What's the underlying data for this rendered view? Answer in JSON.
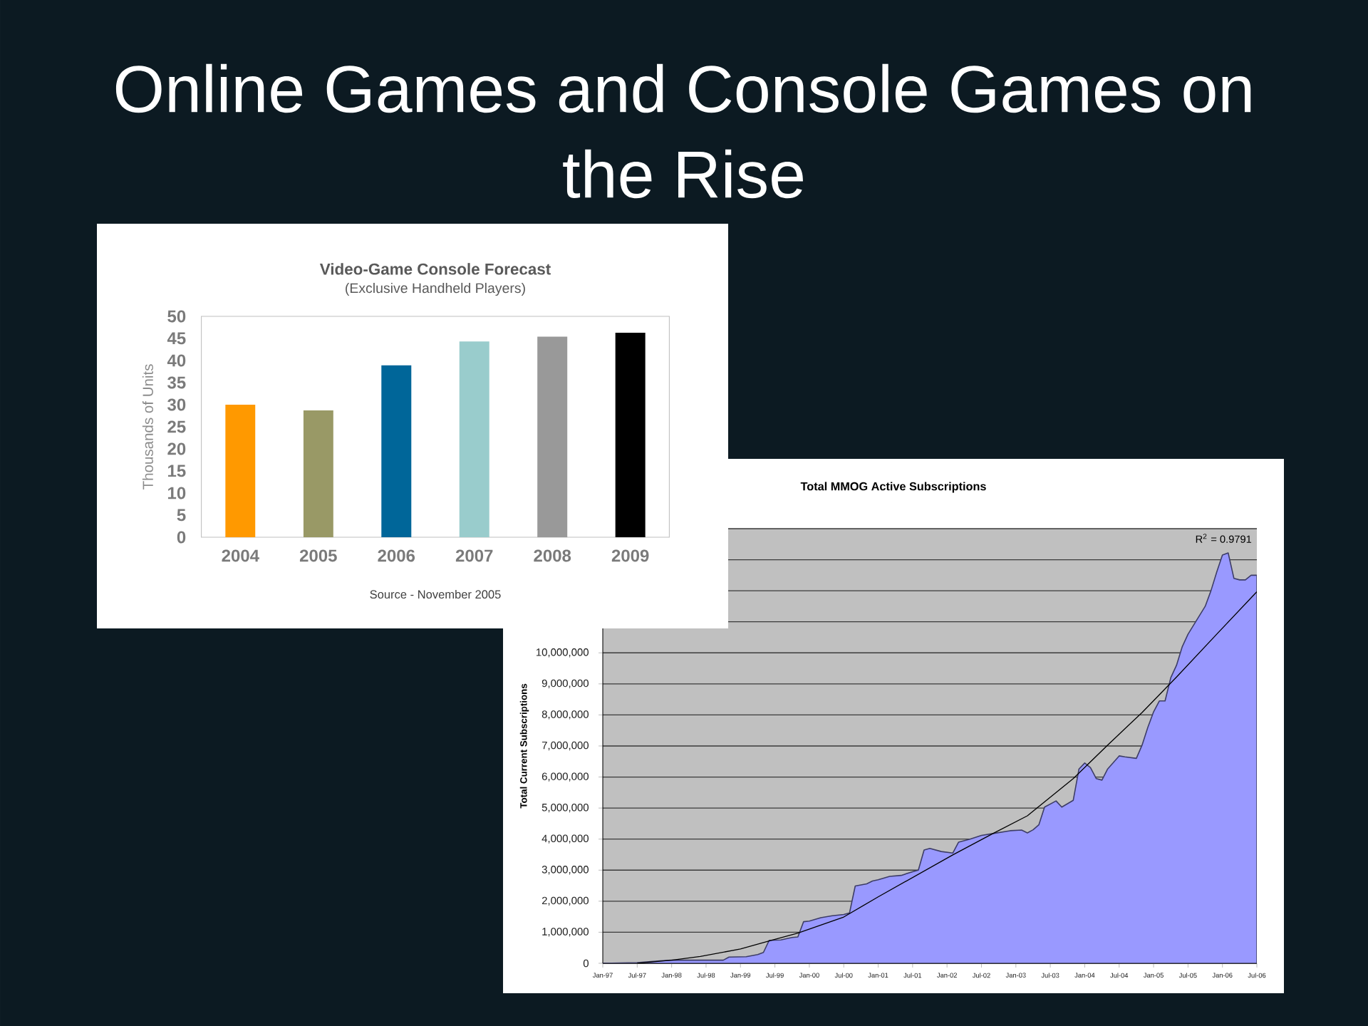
{
  "chart_data": [
    {
      "type": "other",
      "title": "Online Games and Console Games on the Rise"
    },
    {
      "type": "bar",
      "title": "Video-Game Console Forecast",
      "subtitle": "(Exclusive Handheld Players)",
      "ylabel": "Thousands of Units",
      "categories": [
        "2004",
        "2005",
        "2006",
        "2007",
        "2008",
        "2009"
      ],
      "values": [
        30,
        28.7,
        38.9,
        44.3,
        45.4,
        46.3
      ],
      "colors": [
        "#ff9900",
        "#999966",
        "#006699",
        "#99cccc",
        "#999999",
        "#000000"
      ],
      "ylim": [
        0,
        50
      ],
      "yticks": [
        0,
        5,
        10,
        15,
        20,
        25,
        30,
        35,
        40,
        45,
        50
      ],
      "annotations": [
        "Source - November 2005"
      ]
    },
    {
      "type": "area",
      "title": "Total MMOG Active Subscriptions",
      "ylabel": "Total Current Subscriptions",
      "x": [
        "1997-01",
        "1997-07",
        "1997-11",
        "1998-01",
        "1998-10",
        "1998-11",
        "1999-02",
        "1999-04",
        "1999-05",
        "1999-06",
        "1999-08",
        "1999-10",
        "1999-11",
        "1999-12",
        "2000-01",
        "2000-03",
        "2000-05",
        "2000-07",
        "2000-08",
        "2000-09",
        "2000-11",
        "2000-12",
        "2001-01",
        "2001-03",
        "2001-05",
        "2001-07",
        "2001-08",
        "2001-09",
        "2001-10",
        "2001-12",
        "2002-02",
        "2002-03",
        "2002-05",
        "2002-07",
        "2002-09",
        "2002-12",
        "2003-02",
        "2003-03",
        "2003-04",
        "2003-05",
        "2003-06",
        "2003-08",
        "2003-09",
        "2003-11",
        "2003-12",
        "2004-01",
        "2004-02",
        "2004-03",
        "2004-04",
        "2004-05",
        "2004-07",
        "2004-08",
        "2004-10",
        "2004-11",
        "2004-12",
        "2005-01",
        "2005-02",
        "2005-03",
        "2005-04",
        "2005-05",
        "2005-06",
        "2005-07",
        "2005-08",
        "2005-10",
        "2005-11",
        "2005-12",
        "2006-01",
        "2006-02",
        "2006-03",
        "2006-04",
        "2006-05",
        "2006-06",
        "2006-07"
      ],
      "series": [
        {
          "color": "#9999ff",
          "values": [
            0,
            20000,
            80000,
            100000,
            100000,
            200000,
            210000,
            280000,
            350000,
            740000,
            750000,
            830000,
            850000,
            1340000,
            1360000,
            1470000,
            1530000,
            1570000,
            1620000,
            2490000,
            2560000,
            2650000,
            2690000,
            2800000,
            2830000,
            2950000,
            3000000,
            3650000,
            3700000,
            3600000,
            3550000,
            3900000,
            4000000,
            4120000,
            4180000,
            4270000,
            4290000,
            4200000,
            4300000,
            4460000,
            5030000,
            5230000,
            5030000,
            5250000,
            6260000,
            6450000,
            6300000,
            5950000,
            5900000,
            6260000,
            6680000,
            6650000,
            6600000,
            7030000,
            7600000,
            8100000,
            8450000,
            8450000,
            9200000,
            9600000,
            10200000,
            10600000,
            10900000,
            11500000,
            12000000,
            12600000,
            13150000,
            13220000,
            12400000,
            12350000,
            12350000,
            12500000,
            12500000
          ]
        },
        {
          "type": "line",
          "color": "#000000",
          "x": [
            "1997-07",
            "1998-01",
            "1998-06",
            "1999-01",
            "1999-07",
            "1999-11",
            "2000-07",
            "2001-01",
            "2002-02",
            "2002-09",
            "2003-03",
            "2003-11",
            "2004-05",
            "2004-11",
            "2005-05",
            "2005-12",
            "2006-07"
          ],
          "values": [
            0,
            100000,
            220000,
            460000,
            770000,
            970000,
            1490000,
            2140000,
            3490000,
            4180000,
            4750000,
            5950000,
            7030000,
            8080000,
            9220000,
            10600000,
            11970000
          ]
        }
      ],
      "xlim": [
        "1997-01",
        "2006-07"
      ],
      "xticks": [
        {
          "value": "1997-01",
          "label": "Jan-97"
        },
        {
          "value": "1997-07",
          "label": "Jul-97"
        },
        {
          "value": "1998-01",
          "label": "Jan-98"
        },
        {
          "value": "1998-07",
          "label": "Jul-98"
        },
        {
          "value": "1999-01",
          "label": "Jan-99"
        },
        {
          "value": "1999-07",
          "label": "Jul-99"
        },
        {
          "value": "2000-01",
          "label": "Jan-00"
        },
        {
          "value": "2000-07",
          "label": "Jul-00"
        },
        {
          "value": "2001-01",
          "label": "Jan-01"
        },
        {
          "value": "2001-07",
          "label": "Jul-01"
        },
        {
          "value": "2002-01",
          "label": "Jan-02"
        },
        {
          "value": "2002-07",
          "label": "Jul-02"
        },
        {
          "value": "2003-01",
          "label": "Jan-03"
        },
        {
          "value": "2003-07",
          "label": "Jul-03"
        },
        {
          "value": "2004-01",
          "label": "Jan-04"
        },
        {
          "value": "2004-07",
          "label": "Jul-04"
        },
        {
          "value": "2005-01",
          "label": "Jan-05"
        },
        {
          "value": "2005-07",
          "label": "Jul-05"
        },
        {
          "value": "2006-01",
          "label": "Jan-06"
        },
        {
          "value": "2006-07",
          "label": "Jul-06"
        }
      ],
      "ylim": [
        0,
        14000000
      ],
      "yticks": [
        0,
        {
          "value": 1000000,
          "label": "1,000,000"
        },
        {
          "value": 2000000,
          "label": "2,000,000"
        },
        {
          "value": 3000000,
          "label": "3,000,000"
        },
        {
          "value": 4000000,
          "label": "4,000,000"
        },
        {
          "value": 5000000,
          "label": "5,000,000"
        },
        {
          "value": 6000000,
          "label": "6,000,000"
        },
        {
          "value": 7000000,
          "label": "7,000,000"
        },
        {
          "value": 8000000,
          "label": "8,000,000"
        },
        {
          "value": 9000000,
          "label": "9,000,000"
        },
        {
          "value": 10000000,
          "label": "10,000,000"
        },
        {
          "value": 11000000,
          "label": null
        },
        {
          "value": 12000000,
          "label": null
        },
        {
          "value": 13000000,
          "label": null
        },
        {
          "value": 14000000,
          "label": null
        }
      ],
      "grid": "y",
      "annotations": [
        "R$^{2}$ = 0.9791"
      ]
    }
  ]
}
